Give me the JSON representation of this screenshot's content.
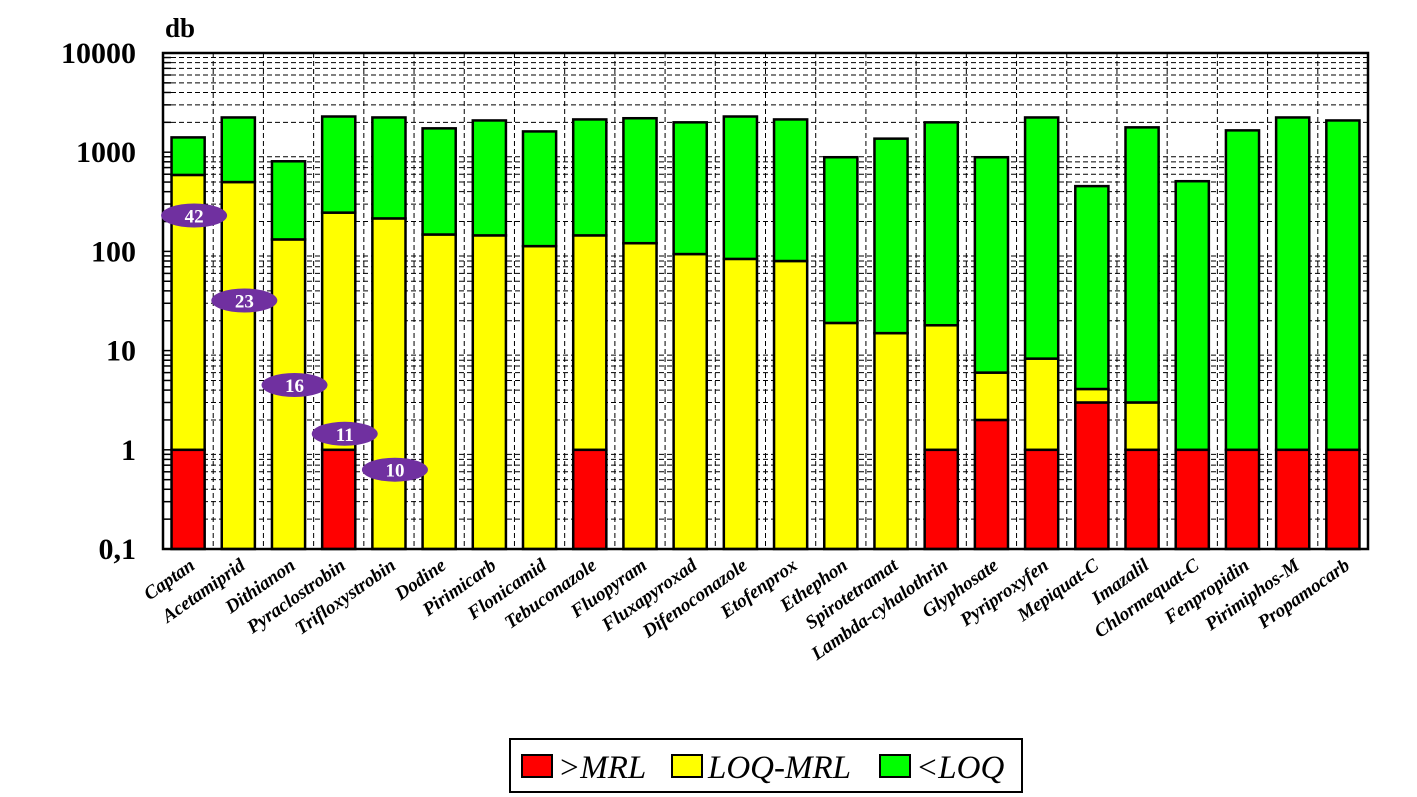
{
  "chart_data": {
    "type": "bar",
    "stacked": true,
    "yscale": "log",
    "ylabel": "db",
    "ylim": [
      0.1,
      10000
    ],
    "yticks": [
      "0,1",
      "1",
      "10",
      "100",
      "1000",
      "10000"
    ],
    "grid": true,
    "legend_position": "bottom",
    "categories": [
      "Captan",
      "Acetamiprid",
      "Dithianon",
      "Pyraclostrobin",
      "Trifloxystrobin",
      "Dodine",
      "Pirimicarb",
      "Flonicamid",
      "Tebuconazole",
      "Fluopyram",
      "Fluxapyroxad",
      "Difenoconazole",
      "Etofenprox",
      "Ethephon",
      "Spirotetramat",
      "Lambda-cyhalothrin",
      "Glyphosate",
      "Pyriproxyfen",
      "Mepiquat-C",
      "Imazalil",
      "Chlormequat-C",
      "Fenpropidin",
      "Pirimiphos-M",
      "Propamocarb"
    ],
    "series": [
      {
        "name": ">MRL",
        "color": "#ff0000",
        "cumulative_top": [
          1,
          null,
          null,
          1,
          null,
          null,
          null,
          null,
          1,
          null,
          null,
          null,
          null,
          null,
          null,
          1,
          2,
          1,
          3,
          1,
          1,
          1,
          1,
          1
        ]
      },
      {
        "name": "LOQ-MRL",
        "color": "#ffff00",
        "cumulative_top": [
          590,
          500,
          132,
          246,
          215,
          148,
          145,
          113,
          145,
          121,
          94,
          84,
          80,
          19,
          15,
          18,
          6,
          8.3,
          4.1,
          3,
          null,
          null,
          null,
          null
        ]
      },
      {
        "name": "<LOQ",
        "color": "#00ff00",
        "cumulative_top": [
          1410,
          2240,
          810,
          2290,
          2240,
          1740,
          2090,
          1620,
          2140,
          2200,
          2000,
          2290,
          2140,
          890,
          1370,
          2000,
          890,
          2240,
          455,
          1780,
          510,
          1660,
          2240,
          2090
        ]
      }
    ],
    "annotations": [
      {
        "text": "42",
        "category": "Captan",
        "value": 230
      },
      {
        "text": "23",
        "category": "Acetamiprid",
        "value": 32
      },
      {
        "text": "16",
        "category": "Dithianon",
        "value": 4.5
      },
      {
        "text": "11",
        "category": "Pyraclostrobin",
        "value": 1.45
      },
      {
        "text": "10",
        "category": "Trifloxystrobin",
        "value": 0.63
      }
    ],
    "annotation_color": "#7030a0"
  },
  "legend": {
    "items": [
      {
        "label": ">MRL",
        "color": "#ff0000"
      },
      {
        "label": "LOQ-MRL",
        "color": "#ffff00"
      },
      {
        "label": "<LOQ",
        "color": "#00ff00"
      }
    ]
  }
}
